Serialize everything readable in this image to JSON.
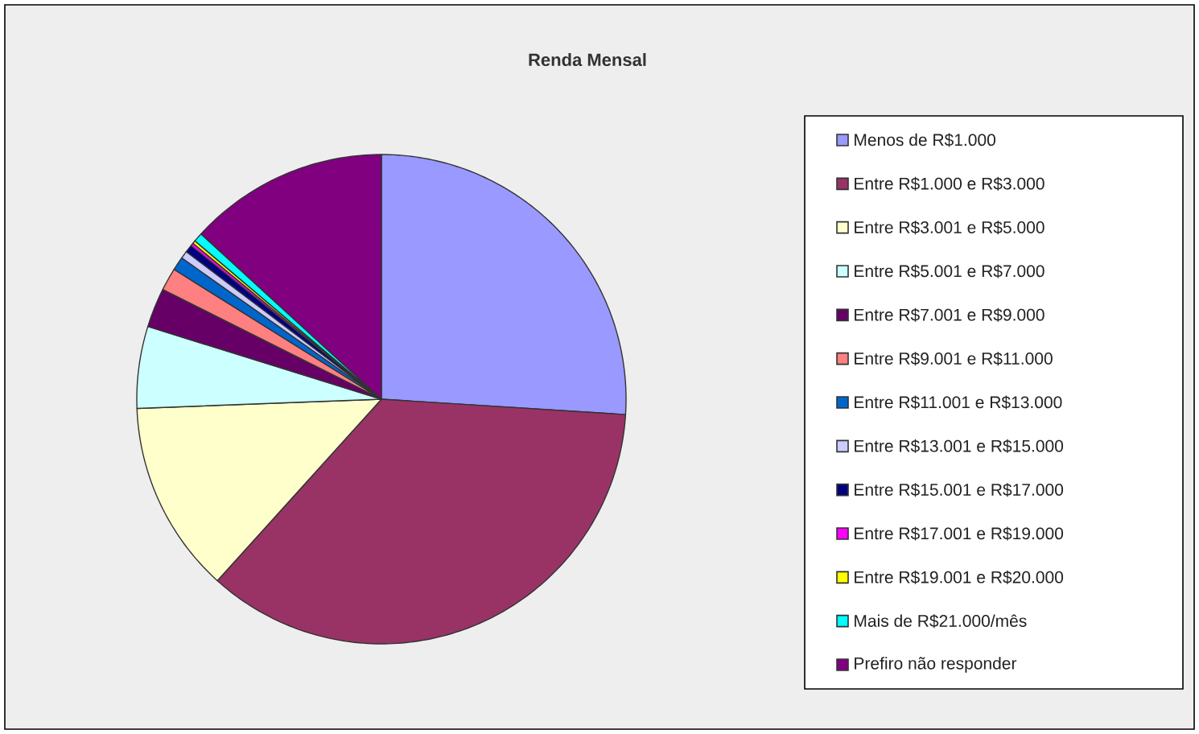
{
  "chart_data": {
    "type": "pie",
    "title": "Renda Mensal",
    "categories": [
      "Menos de R$1.000",
      "Entre R$1.000 e R$3.000",
      "Entre R$3.001 e R$5.000",
      "Entre R$5.001 e R$7.000",
      "Entre R$7.001 e R$9.000",
      "Entre R$9.001 e R$11.000",
      "Entre R$11.001 e R$13.000",
      "Entre R$13.001 e R$15.000",
      "Entre R$15.001 e R$17.000",
      "Entre R$17.001 e R$19.000",
      "Entre R$19.001 e R$20.000",
      "Mais de R$21.000/mês",
      "Prefiro não responder"
    ],
    "values": [
      26.0,
      35.7,
      12.7,
      5.4,
      2.6,
      1.5,
      0.9,
      0.5,
      0.5,
      0.2,
      0.2,
      0.6,
      13.2
    ],
    "colors": [
      "#9999ff",
      "#993366",
      "#ffffcc",
      "#ccffff",
      "#660066",
      "#ff8080",
      "#0066cc",
      "#ccccff",
      "#000080",
      "#ff00ff",
      "#ffff00",
      "#00ffff",
      "#800080"
    ],
    "legend": "right"
  }
}
